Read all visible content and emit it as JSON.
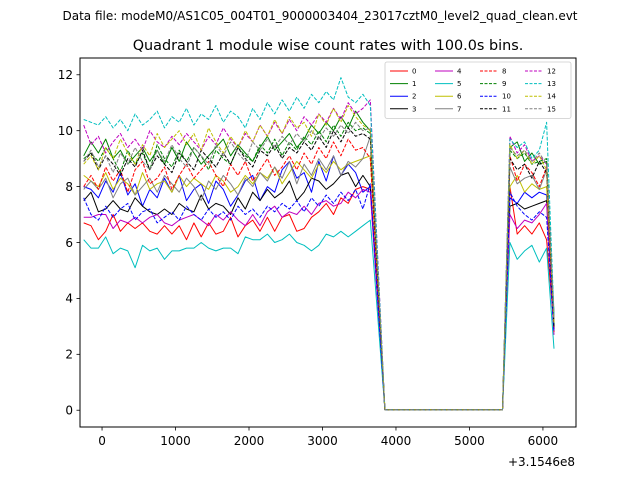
{
  "chart_data": {
    "type": "line",
    "suptitle": "Data file: modeM0/AS1C05_004T01_9000003404_23017cztM0_level2_quad_clean.evt",
    "title": "Quadrant 1 module wise count rates with 100.0s bins.",
    "xlabel": "",
    "ylabel": "",
    "x_offset_label": "+3.1546e8",
    "xlim": [
      -300,
      6450
    ],
    "ylim": [
      -0.6,
      12.6
    ],
    "x_ticks": [
      0,
      1000,
      2000,
      3000,
      4000,
      5000,
      6000
    ],
    "y_ticks": [
      0,
      2,
      4,
      6,
      8,
      10,
      12
    ],
    "grid": false,
    "legend_location": "upper right",
    "legend_columns": 4,
    "x": [
      -250,
      -150,
      -50,
      50,
      150,
      250,
      350,
      450,
      550,
      650,
      750,
      850,
      950,
      1050,
      1150,
      1250,
      1350,
      1450,
      1550,
      1650,
      1750,
      1850,
      1950,
      2050,
      2150,
      2250,
      2350,
      2450,
      2550,
      2650,
      2750,
      2850,
      2950,
      3050,
      3150,
      3250,
      3350,
      3450,
      3550,
      3650,
      3850,
      5450,
      5550,
      5650,
      5750,
      5850,
      5950,
      6050,
      6150
    ],
    "series": [
      {
        "name": "0",
        "color": "#ff0000",
        "dash": "solid",
        "values": [
          6.7,
          6.6,
          6.1,
          6.4,
          7.0,
          6.4,
          6.7,
          6.5,
          6.7,
          6.4,
          6.3,
          6.6,
          6.3,
          6.6,
          6.1,
          6.7,
          6.2,
          6.7,
          6.3,
          6.4,
          6.9,
          6.2,
          6.6,
          6.8,
          6.4,
          6.9,
          6.4,
          6.9,
          7.0,
          6.4,
          6.5,
          6.9,
          7.1,
          7.4,
          7.0,
          7.6,
          7.4,
          7.9,
          8.0,
          7.9,
          0.02,
          0.02,
          8.0,
          6.3,
          6.6,
          6.3,
          6.7,
          6.1,
          3.0
        ]
      },
      {
        "name": "1",
        "color": "#008000",
        "dash": "solid",
        "values": [
          9.1,
          9.6,
          9.2,
          9.7,
          9.0,
          9.3,
          8.8,
          9.1,
          9.4,
          8.9,
          9.3,
          8.8,
          9.4,
          8.9,
          9.6,
          9.2,
          8.8,
          9.1,
          9.4,
          9.7,
          9.1,
          9.5,
          9.2,
          8.9,
          9.4,
          9.8,
          9.3,
          9.6,
          9.9,
          9.4,
          9.7,
          10.2,
          9.9,
          10.3,
          10.0,
          10.5,
          10.1,
          10.7,
          10.3,
          10.0,
          0.02,
          0.02,
          9.4,
          9.6,
          8.9,
          9.2,
          8.8,
          8.9,
          3.0
        ]
      },
      {
        "name": "2",
        "color": "#0000ff",
        "dash": "solid",
        "values": [
          8.0,
          7.9,
          7.6,
          8.2,
          7.8,
          8.5,
          7.7,
          8.1,
          7.3,
          7.9,
          7.6,
          8.3,
          7.8,
          8.4,
          7.5,
          7.9,
          8.1,
          7.4,
          8.2,
          7.9,
          7.3,
          7.7,
          8.2,
          8.4,
          7.5,
          8.0,
          7.8,
          8.6,
          8.9,
          8.3,
          8.5,
          7.8,
          8.9,
          8.2,
          9.1,
          8.4,
          8.8,
          8.5,
          7.8,
          8.0,
          0.02,
          0.02,
          7.6,
          7.4,
          7.8,
          7.6,
          7.8,
          7.7,
          2.9
        ]
      },
      {
        "name": "3",
        "color": "#000000",
        "dash": "solid",
        "values": [
          7.5,
          7.8,
          7.1,
          7.2,
          7.5,
          7.2,
          7.1,
          7.6,
          7.3,
          7.1,
          7.0,
          7.2,
          7.0,
          7.4,
          7.2,
          7.1,
          7.7,
          7.2,
          7.4,
          7.3,
          7.0,
          7.6,
          7.2,
          7.8,
          7.5,
          7.9,
          7.6,
          7.8,
          8.2,
          7.5,
          7.8,
          8.3,
          8.2,
          7.9,
          8.1,
          8.4,
          8.5,
          8.0,
          8.4,
          8.0,
          0.02,
          0.02,
          7.3,
          7.4,
          7.2,
          7.3,
          7.4,
          7.5,
          2.9
        ]
      },
      {
        "name": "4",
        "color": "#bf00bf",
        "dash": "solid",
        "values": [
          6.9,
          6.9,
          7.0,
          7.0,
          6.5,
          6.8,
          6.7,
          6.9,
          6.7,
          6.9,
          7.0,
          6.7,
          6.6,
          6.8,
          6.9,
          7.0,
          6.8,
          6.6,
          7.0,
          6.8,
          7.1,
          6.8,
          6.6,
          7.0,
          6.6,
          7.1,
          7.3,
          6.9,
          7.1,
          7.0,
          7.3,
          7.0,
          7.4,
          7.5,
          7.3,
          7.4,
          7.8,
          7.6,
          7.9,
          7.8,
          0.02,
          0.02,
          7.0,
          6.5,
          6.8,
          6.7,
          7.0,
          7.4,
          2.7
        ]
      },
      {
        "name": "5",
        "color": "#00bfbf",
        "dash": "solid",
        "values": [
          6.1,
          5.8,
          5.8,
          6.2,
          5.6,
          5.8,
          5.7,
          5.1,
          5.9,
          5.7,
          5.8,
          5.4,
          5.7,
          5.7,
          5.8,
          5.8,
          6.0,
          5.8,
          5.7,
          5.8,
          5.8,
          5.6,
          6.2,
          6.1,
          6.1,
          6.3,
          6.0,
          6.1,
          6.3,
          6.0,
          5.9,
          5.7,
          5.9,
          6.3,
          6.2,
          6.4,
          6.2,
          6.4,
          6.6,
          6.8,
          0.02,
          0.02,
          6.0,
          5.4,
          5.7,
          5.9,
          5.3,
          5.8,
          2.2
        ]
      },
      {
        "name": "6",
        "color": "#bfbf00",
        "dash": "solid",
        "values": [
          8.4,
          8.2,
          8.0,
          8.5,
          7.9,
          8.3,
          8.1,
          7.7,
          8.5,
          7.9,
          8.1,
          8.2,
          7.8,
          8.4,
          8.0,
          8.3,
          8.1,
          7.9,
          8.4,
          8.2,
          7.8,
          8.0,
          8.4,
          8.1,
          8.5,
          8.3,
          8.7,
          8.1,
          8.5,
          8.9,
          8.6,
          8.3,
          8.8,
          8.5,
          8.9,
          8.6,
          8.8,
          8.9,
          9.0,
          9.1,
          0.02,
          0.02,
          8.0,
          8.4,
          7.8,
          8.1,
          7.9,
          8.0,
          3.4
        ]
      },
      {
        "name": "7",
        "color": "#808080",
        "dash": "solid",
        "values": [
          7.9,
          8.2,
          7.9,
          8.3,
          7.6,
          8.1,
          8.3,
          7.7,
          8.0,
          8.3,
          7.8,
          8.4,
          8.1,
          7.8,
          8.3,
          8.0,
          7.5,
          8.2,
          7.9,
          8.4,
          8.1,
          7.7,
          8.3,
          8.0,
          8.5,
          8.2,
          8.7,
          8.3,
          8.9,
          8.1,
          8.8,
          8.4,
          9.0,
          8.6,
          9.1,
          8.4,
          8.9,
          8.7,
          9.0,
          9.8,
          0.02,
          0.02,
          8.7,
          8.1,
          8.3,
          8.4,
          7.9,
          8.6,
          3.5
        ]
      },
      {
        "name": "8",
        "color": "#ff0000",
        "dash": "dashed",
        "values": [
          8.0,
          8.4,
          7.9,
          8.7,
          8.2,
          8.6,
          7.8,
          8.6,
          8.9,
          8.1,
          8.3,
          8.7,
          7.9,
          8.4,
          8.8,
          8.3,
          8.6,
          8.9,
          8.4,
          8.0,
          8.8,
          8.4,
          8.9,
          8.2,
          8.6,
          9.0,
          8.4,
          8.7,
          9.1,
          8.6,
          9.2,
          8.8,
          9.4,
          9.0,
          9.6,
          9.1,
          9.7,
          9.3,
          9.4,
          9.0,
          0.02,
          0.02,
          9.1,
          8.2,
          8.8,
          8.5,
          8.0,
          8.7,
          2.8
        ]
      },
      {
        "name": "9",
        "color": "#008000",
        "dash": "dashed",
        "values": [
          9.0,
          9.2,
          8.9,
          9.4,
          9.0,
          8.5,
          9.3,
          8.8,
          9.2,
          8.6,
          9.5,
          9.0,
          8.7,
          9.3,
          8.9,
          9.4,
          9.1,
          8.6,
          9.3,
          9.0,
          8.8,
          9.4,
          9.1,
          8.9,
          9.5,
          9.2,
          9.7,
          9.1,
          9.6,
          9.3,
          9.8,
          9.5,
          10.0,
          9.6,
          10.2,
          9.8,
          10.3,
          10.0,
          10.1,
          9.9,
          0.02,
          0.02,
          9.3,
          9.0,
          9.2,
          8.8,
          8.9,
          9.0,
          3.1
        ]
      },
      {
        "name": "10",
        "color": "#0000ff",
        "dash": "dashed",
        "values": [
          7.6,
          7.0,
          6.8,
          7.3,
          6.9,
          7.2,
          7.4,
          6.8,
          7.1,
          7.2,
          6.7,
          6.9,
          7.1,
          6.8,
          7.3,
          7.0,
          6.8,
          7.2,
          6.9,
          7.1,
          6.8,
          7.3,
          7.0,
          7.2,
          6.9,
          7.3,
          7.1,
          7.4,
          7.2,
          7.5,
          7.1,
          7.6,
          7.3,
          7.7,
          7.4,
          7.8,
          7.5,
          7.9,
          7.2,
          8.1,
          0.02,
          0.02,
          7.8,
          7.3,
          7.0,
          6.8,
          7.1,
          6.9,
          2.8
        ]
      },
      {
        "name": "11",
        "color": "#000000",
        "dash": "dashed",
        "values": [
          8.9,
          9.2,
          8.6,
          9.1,
          8.8,
          8.4,
          9.0,
          8.7,
          9.3,
          8.6,
          9.1,
          8.8,
          8.5,
          9.2,
          8.9,
          8.6,
          9.3,
          9.0,
          8.7,
          9.2,
          8.8,
          9.4,
          9.0,
          8.7,
          9.3,
          9.1,
          9.5,
          9.0,
          9.4,
          9.2,
          9.6,
          9.3,
          9.8,
          9.4,
          10.0,
          9.6,
          10.1,
          9.8,
          9.9,
          9.7,
          0.02,
          0.02,
          9.0,
          8.6,
          8.8,
          8.3,
          8.9,
          8.5,
          3.0
        ]
      },
      {
        "name": "12",
        "color": "#bf00bf",
        "dash": "dashed",
        "values": [
          10.2,
          9.5,
          9.8,
          9.2,
          9.6,
          9.9,
          9.4,
          9.7,
          9.3,
          10.0,
          9.6,
          9.4,
          9.8,
          9.5,
          9.9,
          9.6,
          9.3,
          9.8,
          9.5,
          10.1,
          9.7,
          9.4,
          9.9,
          9.6,
          10.2,
          9.8,
          10.3,
          9.9,
          10.4,
          10.0,
          10.5,
          10.2,
          10.6,
          10.3,
          10.8,
          10.4,
          11.0,
          10.6,
          10.8,
          11.1,
          0.02,
          0.02,
          9.8,
          9.2,
          9.5,
          8.9,
          9.1,
          8.8,
          3.2
        ]
      },
      {
        "name": "13",
        "color": "#00bfbf",
        "dash": "dashed",
        "values": [
          10.4,
          10.3,
          10.2,
          10.5,
          10.1,
          10.4,
          10.0,
          10.6,
          10.2,
          10.4,
          10.7,
          10.1,
          10.5,
          10.3,
          10.8,
          10.2,
          10.6,
          10.4,
          10.9,
          10.3,
          10.7,
          10.5,
          10.1,
          10.8,
          10.4,
          11.0,
          10.6,
          11.1,
          10.7,
          11.2,
          10.8,
          11.3,
          11.0,
          11.4,
          11.1,
          11.9,
          11.2,
          11.0,
          11.3,
          10.9,
          0.02,
          0.02,
          9.7,
          9.4,
          9.6,
          9.0,
          9.3,
          10.3,
          3.4
        ]
      },
      {
        "name": "14",
        "color": "#bfbf00",
        "dash": "dashed",
        "values": [
          8.8,
          9.1,
          8.6,
          9.4,
          9.0,
          9.7,
          9.2,
          8.8,
          9.5,
          9.1,
          9.9,
          9.4,
          9.7,
          10.0,
          9.5,
          9.9,
          9.3,
          10.1,
          9.6,
          9.2,
          9.8,
          9.4,
          10.0,
          9.6,
          10.2,
          9.8,
          10.4,
          9.9,
          10.5,
          10.1,
          10.3,
          9.8,
          10.6,
          10.2,
          10.8,
          10.3,
          10.9,
          10.5,
          10.2,
          10.0,
          0.02,
          0.02,
          9.5,
          9.0,
          9.3,
          8.8,
          9.1,
          8.6,
          3.1
        ]
      },
      {
        "name": "15",
        "color": "#808080",
        "dash": "dashed",
        "values": [
          8.9,
          9.3,
          8.7,
          9.1,
          8.5,
          9.2,
          8.8,
          9.4,
          8.9,
          8.6,
          9.3,
          8.9,
          9.5,
          9.0,
          8.7,
          9.4,
          9.1,
          8.8,
          9.5,
          9.1,
          9.6,
          9.2,
          8.9,
          9.6,
          9.3,
          9.7,
          9.4,
          9.8,
          9.5,
          9.9,
          9.6,
          10.0,
          9.7,
          10.1,
          9.8,
          10.2,
          9.9,
          10.3,
          10.0,
          10.1,
          0.02,
          0.02,
          9.4,
          9.1,
          9.3,
          8.9,
          9.2,
          8.8,
          3.3
        ]
      }
    ]
  }
}
